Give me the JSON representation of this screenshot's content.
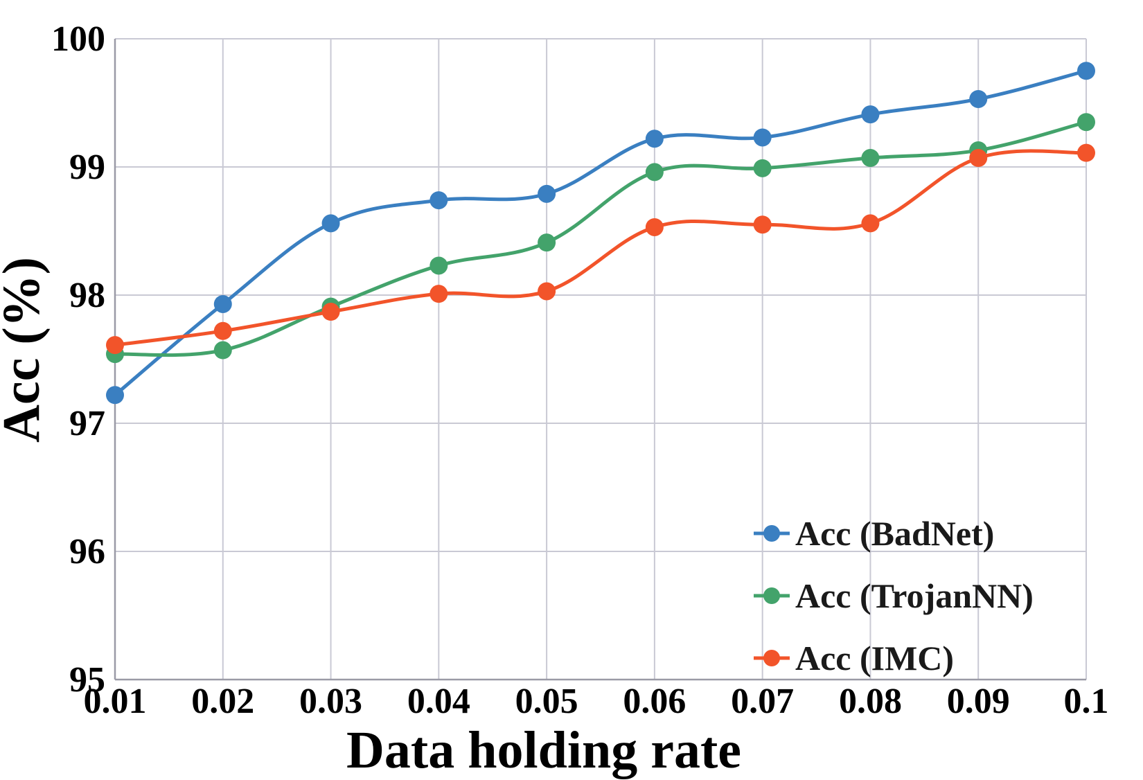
{
  "chart_data": {
    "type": "line",
    "title": "",
    "xlabel": "Data holding rate",
    "ylabel": "Acc (%)",
    "x": [
      0.01,
      0.02,
      0.03,
      0.04,
      0.05,
      0.06,
      0.07,
      0.08,
      0.09,
      0.1
    ],
    "x_tick_labels": [
      "0.01",
      "0.02",
      "0.03",
      "0.04",
      "0.05",
      "0.06",
      "0.07",
      "0.08",
      "0.09",
      "0.1"
    ],
    "ylim": [
      95,
      100
    ],
    "y_ticks": [
      95,
      96,
      97,
      98,
      99,
      100
    ],
    "y_tick_labels": [
      "95",
      "96",
      "97",
      "98",
      "99",
      "100"
    ],
    "grid": true,
    "legend_position": "bottom-right",
    "series": [
      {
        "name": "Acc (BadNet)",
        "color": "#3a7fc1",
        "values": [
          97.22,
          97.93,
          98.56,
          98.74,
          98.79,
          99.22,
          99.23,
          99.41,
          99.53,
          99.75
        ]
      },
      {
        "name": "Acc (TrojanNN)",
        "color": "#43a36b",
        "values": [
          97.54,
          97.57,
          97.91,
          98.23,
          98.41,
          98.96,
          98.99,
          99.07,
          99.13,
          99.35
        ]
      },
      {
        "name": "Acc (IMC)",
        "color": "#f2542a",
        "values": [
          97.61,
          97.72,
          97.87,
          98.01,
          98.03,
          98.53,
          98.55,
          98.56,
          99.07,
          99.11
        ]
      }
    ]
  }
}
